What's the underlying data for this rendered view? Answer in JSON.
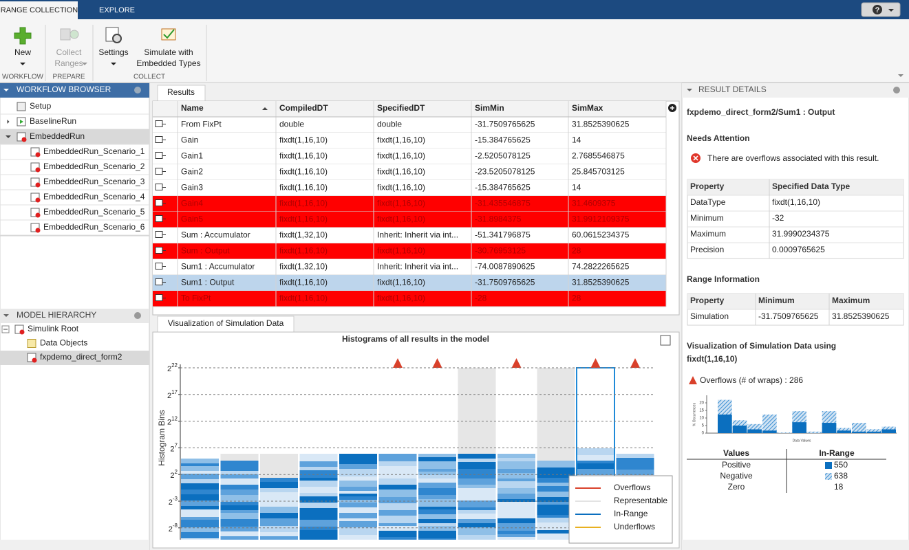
{
  "tabs": [
    "RANGE COLLECTION",
    "EXPLORE"
  ],
  "toolstrip": {
    "buttons": [
      {
        "lines": [
          "New"
        ]
      },
      {
        "lines": [
          "Collect",
          "Ranges"
        ]
      },
      {
        "lines": [
          "Settings"
        ]
      },
      {
        "lines": [
          "Simulate with",
          "Embedded Types"
        ]
      }
    ],
    "sections": [
      "WORKFLOW",
      "PREPARE",
      "COLLECT"
    ]
  },
  "workflow_browser": {
    "title": "WORKFLOW BROWSER",
    "items": [
      "Setup",
      "BaselineRun",
      "EmbeddedRun",
      "EmbeddedRun_Scenario_1",
      "EmbeddedRun_Scenario_2",
      "EmbeddedRun_Scenario_3",
      "EmbeddedRun_Scenario_4",
      "EmbeddedRun_Scenario_5",
      "EmbeddedRun_Scenario_6"
    ]
  },
  "model_hierarchy": {
    "title": "MODEL HIERARCHY",
    "items": [
      "Simulink Root",
      "Data Objects",
      "fxpdemo_direct_form2"
    ]
  },
  "results": {
    "tab": "Results",
    "columns": [
      "Name",
      "CompiledDT",
      "SpecifiedDT",
      "SimMin",
      "SimMax"
    ],
    "rows": [
      [
        "From FixPt",
        "double",
        "double",
        "-31.7509765625",
        "31.8525390625"
      ],
      [
        "Gain",
        "fixdt(1,16,10)",
        "fixdt(1,16,10)",
        "-15.384765625",
        "14"
      ],
      [
        "Gain1",
        "fixdt(1,16,10)",
        "fixdt(1,16,10)",
        "-2.5205078125",
        "2.7685546875"
      ],
      [
        "Gain2",
        "fixdt(1,16,10)",
        "fixdt(1,16,10)",
        "-23.5205078125",
        "25.845703125"
      ],
      [
        "Gain3",
        "fixdt(1,16,10)",
        "fixdt(1,16,10)",
        "-15.384765625",
        "14"
      ],
      [
        "Gain4",
        "fixdt(1,16,10)",
        "fixdt(1,16,10)",
        "-31.435546875",
        "31.4609375"
      ],
      [
        "Gain5",
        "fixdt(1,16,10)",
        "fixdt(1,16,10)",
        "-31.8984375",
        "31.9912109375"
      ],
      [
        "Sum : Accumulator",
        "fixdt(1,32,10)",
        "Inherit: Inherit via int...",
        "-51.341796875",
        "60.0615234375"
      ],
      [
        "Sum : Output",
        "fixdt(1,16,10)",
        "fixdt(1,16,10)",
        "-30.76953125",
        "28"
      ],
      [
        "Sum1 : Accumulator",
        "fixdt(1,32,10)",
        "Inherit: Inherit via int...",
        "-74.0087890625",
        "74.2822265625"
      ],
      [
        "Sum1 : Output",
        "fixdt(1,16,10)",
        "fixdt(1,16,10)",
        "-31.7509765625",
        "31.8525390625"
      ],
      [
        "To FixPt",
        "fixdt(1,16,10)",
        "fixdt(1,16,10)",
        "-28",
        "28"
      ]
    ],
    "row_colors": [
      "#ffffff",
      "#ffffff",
      "#ffffff",
      "#ffffff",
      "#ffffff",
      "#ff0000",
      "#ff0000",
      "#ffffff",
      "#ff0000",
      "#ffffff",
      "#bdd5ec",
      "#ff0000"
    ]
  },
  "visualization": {
    "tab": "Visualization of Simulation Data",
    "title": "Histograms of all results in the model",
    "ylabel": "Histogram Bins",
    "tick_base": "2",
    "tick_exponents": [
      22,
      17,
      12,
      7,
      2,
      -3,
      -8
    ],
    "legend": [
      {
        "name": "Overflows",
        "color": "#d9412b"
      },
      {
        "name": "Representable",
        "color": "#e3e3e3"
      },
      {
        "name": "In-Range",
        "color": "#0b6fbf"
      },
      {
        "name": "Underflows",
        "color": "#e8b020"
      }
    ]
  },
  "details": {
    "title": "RESULT DETAILS",
    "heading": "fxpdemo_direct_form2/Sum1 : Output",
    "needs_attention": "Needs Attention",
    "message": "There are overflows associated with this result.",
    "property_table": {
      "columns": [
        "Property",
        "Specified Data Type"
      ],
      "rows": [
        [
          "DataType",
          "fixdt(1,16,10)"
        ],
        [
          "Minimum",
          "-32"
        ],
        [
          "Maximum",
          "31.9990234375"
        ],
        [
          "Precision",
          "0.0009765625"
        ]
      ]
    },
    "range_heading": "Range Information",
    "range_table": {
      "columns": [
        "Property",
        "Minimum",
        "Maximum"
      ],
      "rows": [
        [
          "Simulation",
          "-31.7509765625",
          "31.8525390625"
        ]
      ]
    },
    "viz_heading": [
      "Visualization of Simulation Data using",
      "fixdt(1,16,10)"
    ],
    "overflows": "Overflows (# of wraps) : 286",
    "mini_chart": {
      "type": "bar",
      "ylabel": "% Occurrences",
      "xlabel": "Data Values",
      "ylim": [
        0,
        25
      ],
      "yticks": [
        0,
        5,
        10,
        15,
        20
      ],
      "series": [
        {
          "color": "#8ab8e0",
          "values": [
            22,
            8.5,
            6,
            12.3,
            0.4,
            14.5,
            1,
            14.5,
            3.4,
            6.8,
            2.6,
            4.3
          ]
        },
        {
          "color": "#0b6fbf",
          "values": [
            12.3,
            5,
            2.5,
            1.7,
            0,
            7.2,
            0,
            6.8,
            1.7,
            1,
            1,
            2.5
          ]
        }
      ]
    },
    "values_table": {
      "columns": [
        "Values",
        "In-Range"
      ],
      "rows": [
        [
          "Positive",
          "550"
        ],
        [
          "Negative",
          "638"
        ],
        [
          "Zero",
          "18"
        ]
      ]
    }
  }
}
